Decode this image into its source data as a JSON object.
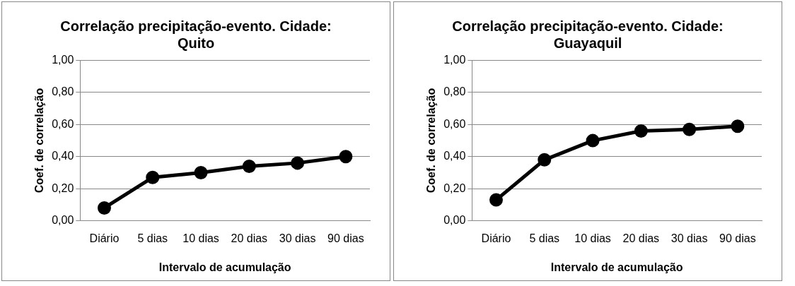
{
  "chart_data": [
    {
      "type": "line",
      "title": "Correlação precipitação-evento. Cidade: Quito",
      "xlabel": "Intervalo de acumulação",
      "ylabel": "Coef. de correlação",
      "categories": [
        "Diário",
        "5 dias",
        "10 dias",
        "20 dias",
        "30 dias",
        "90 dias"
      ],
      "series": [
        {
          "color": "#000000",
          "values": [
            0.08,
            0.27,
            0.3,
            0.34,
            0.36,
            0.4
          ]
        }
      ],
      "ylim": [
        0,
        1
      ],
      "yticks": [
        {
          "value": 0,
          "label": "0,00"
        },
        {
          "value": 0.2,
          "label": "0,20"
        },
        {
          "value": 0.4,
          "label": "0,40"
        },
        {
          "value": 0.6,
          "label": "0,60"
        },
        {
          "value": 0.8,
          "label": "0,80"
        },
        {
          "value": 1,
          "label": "1,00"
        }
      ],
      "grid": "y",
      "legend": false,
      "marker": "circle",
      "line_style": "solid"
    },
    {
      "type": "line",
      "title": "Correlação precipitação-evento. Cidade: Guayaquil",
      "xlabel": "Intervalo de acumulação",
      "ylabel": "Coef. de correlação",
      "categories": [
        "Diário",
        "5 dias",
        "10 dias",
        "20 dias",
        "30 dias",
        "90 dias"
      ],
      "series": [
        {
          "color": "#000000",
          "values": [
            0.13,
            0.38,
            0.5,
            0.56,
            0.57,
            0.59
          ]
        }
      ],
      "ylim": [
        0,
        1
      ],
      "yticks": [
        {
          "value": 0,
          "label": "0,00"
        },
        {
          "value": 0.2,
          "label": "0,20"
        },
        {
          "value": 0.4,
          "label": "0,40"
        },
        {
          "value": 0.6,
          "label": "0,60"
        },
        {
          "value": 0.8,
          "label": "0,80"
        },
        {
          "value": 1,
          "label": "1,00"
        }
      ],
      "grid": "y",
      "legend": false,
      "marker": "circle",
      "line_style": "solid"
    }
  ]
}
